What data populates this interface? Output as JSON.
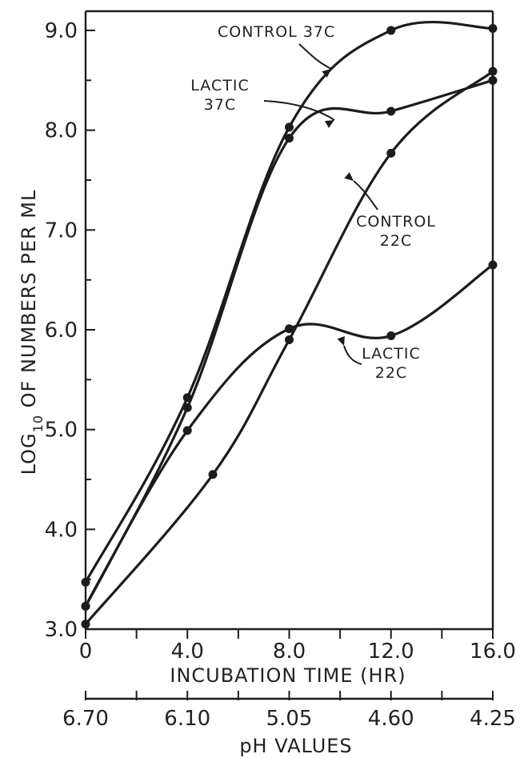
{
  "chart_data": {
    "type": "line",
    "xlabel": "INCUBATION TIME (HR)",
    "ylabel": "LOG10 OF NUMBERS PER ML",
    "ylabel_parts": {
      "prefix": "LOG",
      "subscript": "10",
      "rest": " OF NUMBERS PER ML"
    },
    "secondary_xlabel": "pH VALUES",
    "xlim": [
      0,
      16
    ],
    "ylim": [
      3,
      9.2
    ],
    "x_ticks": [
      "0",
      "4.0",
      "8.0",
      "12.0",
      "16.0"
    ],
    "y_ticks": [
      "3.0",
      "4.0",
      "5.0",
      "6.0",
      "7.0",
      "8.0",
      "9.0"
    ],
    "ph_ticks": [
      "6.70",
      "6.10",
      "5.05",
      "4.60",
      "4.25"
    ],
    "series": [
      {
        "name": "CONTROL 37C",
        "x": [
          0,
          4,
          8,
          12,
          16
        ],
        "y": [
          3.47,
          5.32,
          8.03,
          9.0,
          9.02
        ]
      },
      {
        "name": "LACTIC 37C",
        "x": [
          0,
          4,
          8,
          12,
          16
        ],
        "y": [
          3.23,
          5.22,
          7.92,
          8.19,
          8.5
        ]
      },
      {
        "name": "CONTROL 22C",
        "x": [
          0,
          5,
          8,
          12,
          16
        ],
        "y": [
          3.05,
          4.55,
          5.9,
          7.77,
          8.59
        ]
      },
      {
        "name": "LACTIC 22C",
        "x": [
          0,
          4,
          8,
          12,
          16
        ],
        "y": [
          3.23,
          4.99,
          6.01,
          5.94,
          6.65
        ]
      }
    ],
    "annotations": [
      {
        "lines": [
          "CONTROL 37C"
        ]
      },
      {
        "lines": [
          "LACTIC",
          "37C"
        ]
      },
      {
        "lines": [
          "CONTROL",
          "22C"
        ]
      },
      {
        "lines": [
          "LACTIC",
          "22C"
        ]
      }
    ],
    "grid": false,
    "legend": "none"
  }
}
